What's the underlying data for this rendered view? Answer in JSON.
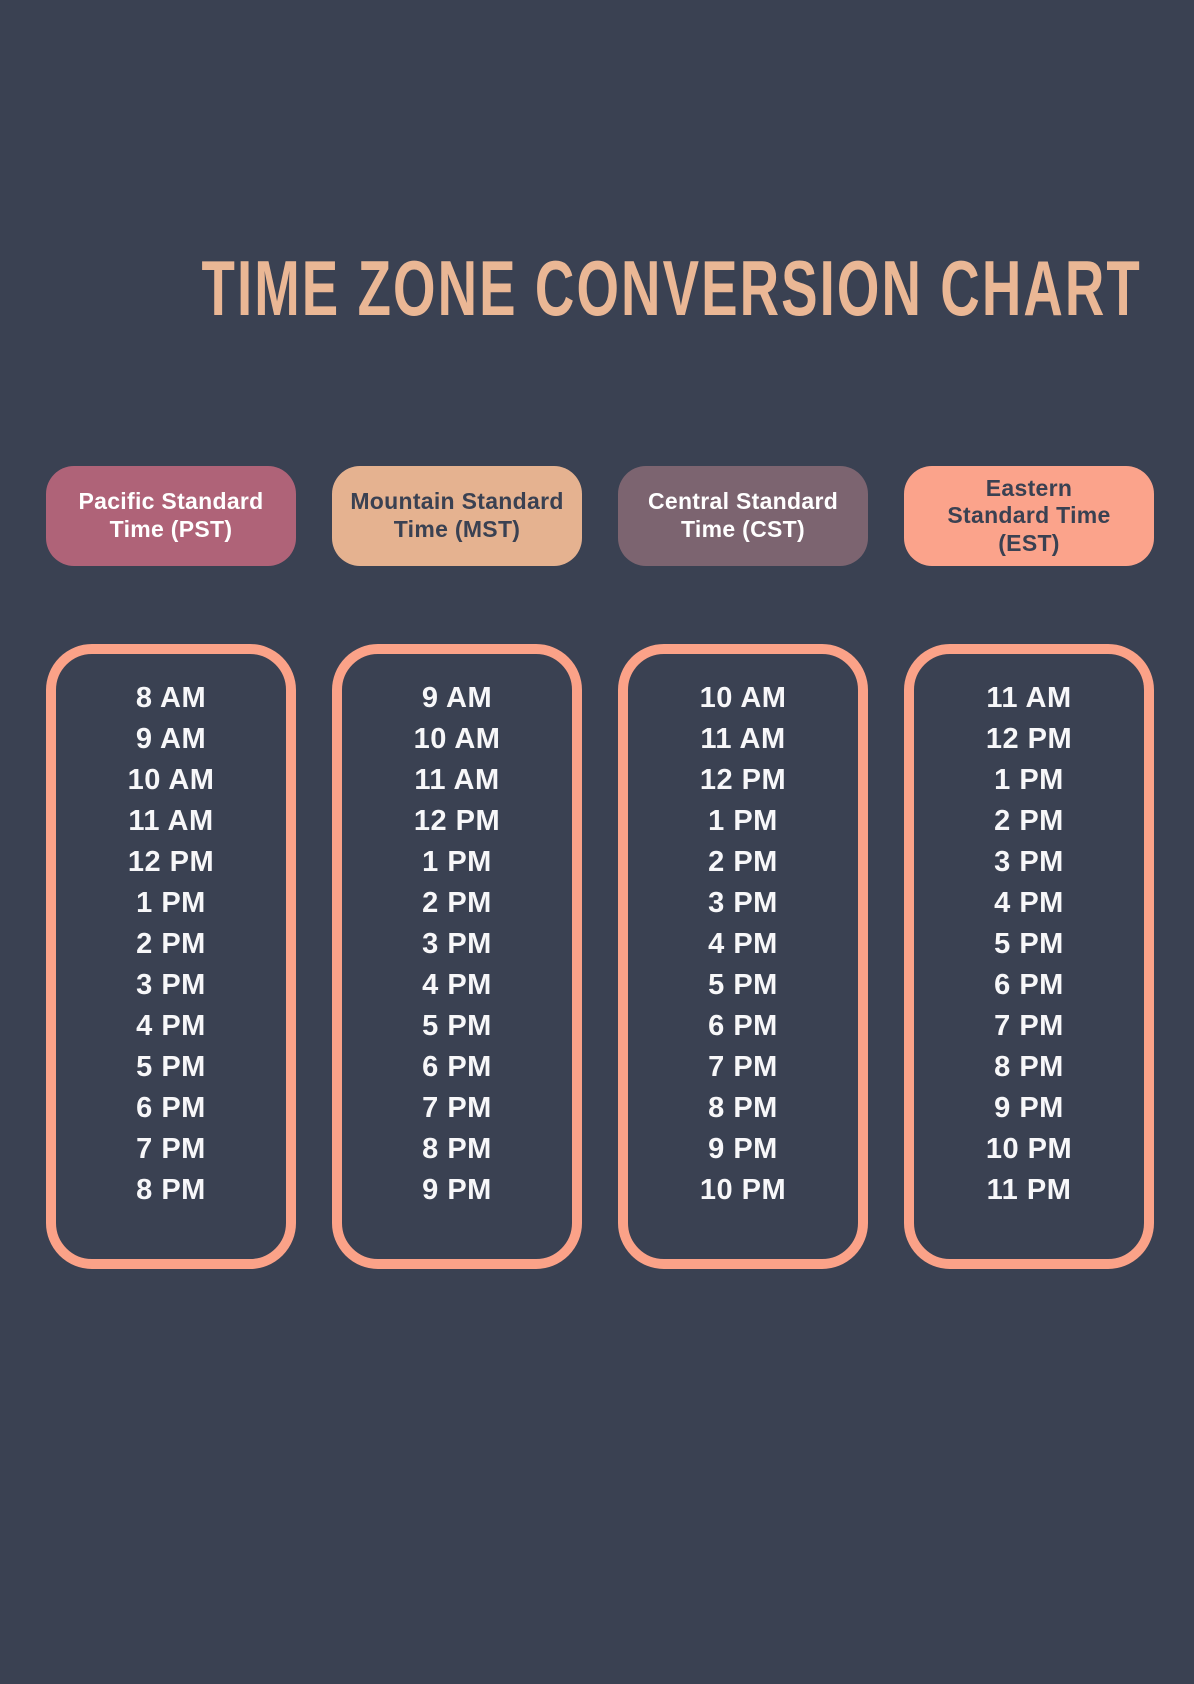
{
  "page": {
    "title": "TIME ZONE CONVERSION CHART"
  },
  "palette": {
    "background": "#3a4152",
    "title_text": "#eab795",
    "pst_pill": "#af6378",
    "mst_pill": "#e5b290",
    "cst_pill": "#7c6470",
    "est_pill": "#fba38b",
    "box_border": "#fba288",
    "time_text": "#f7f7f9",
    "dark_text": "#3a4152",
    "light_text": "#ffffff"
  },
  "columns": [
    {
      "id": "pst",
      "header": "Pacific Standard\nTime (PST)",
      "times": [
        "8 AM",
        "9 AM",
        "10 AM",
        "11 AM",
        "12 PM",
        "1 PM",
        "2 PM",
        "3 PM",
        "4 PM",
        "5 PM",
        "6 PM",
        "7 PM",
        "8 PM"
      ]
    },
    {
      "id": "mst",
      "header": "Mountain Standard\nTime (MST)",
      "times": [
        "9 AM",
        "10 AM",
        "11 AM",
        "12 PM",
        "1 PM",
        "2 PM",
        "3 PM",
        "4 PM",
        "5 PM",
        "6 PM",
        "7 PM",
        "8 PM",
        "9 PM"
      ]
    },
    {
      "id": "cst",
      "header": "Central Standard\nTime (CST)",
      "times": [
        "10 AM",
        "11 AM",
        "12 PM",
        "1 PM",
        "2 PM",
        "3 PM",
        "4 PM",
        "5 PM",
        "6 PM",
        "7 PM",
        "8 PM",
        "9 PM",
        "10 PM"
      ]
    },
    {
      "id": "est",
      "header": "Eastern\nStandard Time\n(EST)",
      "times": [
        "11 AM",
        "12 PM",
        "1 PM",
        "2 PM",
        "3 PM",
        "4 PM",
        "5 PM",
        "6 PM",
        "7 PM",
        "8 PM",
        "9 PM",
        "10 PM",
        "11 PM"
      ]
    }
  ],
  "chart_data": {
    "type": "table",
    "title": "TIME ZONE CONVERSION CHART",
    "columns": [
      "Pacific Standard Time (PST)",
      "Mountain Standard Time (MST)",
      "Central Standard Time (CST)",
      "Eastern Standard Time (EST)"
    ],
    "rows": [
      [
        "8 AM",
        "9 AM",
        "10 AM",
        "11 AM"
      ],
      [
        "9 AM",
        "10 AM",
        "11 AM",
        "12 PM"
      ],
      [
        "10 AM",
        "11 AM",
        "12 PM",
        "1 PM"
      ],
      [
        "11 AM",
        "12 PM",
        "1 PM",
        "2 PM"
      ],
      [
        "12 PM",
        "1 PM",
        "2 PM",
        "3 PM"
      ],
      [
        "1 PM",
        "2 PM",
        "3 PM",
        "4 PM"
      ],
      [
        "2 PM",
        "3 PM",
        "4 PM",
        "5 PM"
      ],
      [
        "3 PM",
        "4 PM",
        "5 PM",
        "6 PM"
      ],
      [
        "4 PM",
        "5 PM",
        "6 PM",
        "7 PM"
      ],
      [
        "5 PM",
        "6 PM",
        "7 PM",
        "8 PM"
      ],
      [
        "6 PM",
        "7 PM",
        "8 PM",
        "9 PM"
      ],
      [
        "7 PM",
        "8 PM",
        "9 PM",
        "10 PM"
      ],
      [
        "8 PM",
        "9 PM",
        "10 PM",
        "11 PM"
      ]
    ]
  }
}
